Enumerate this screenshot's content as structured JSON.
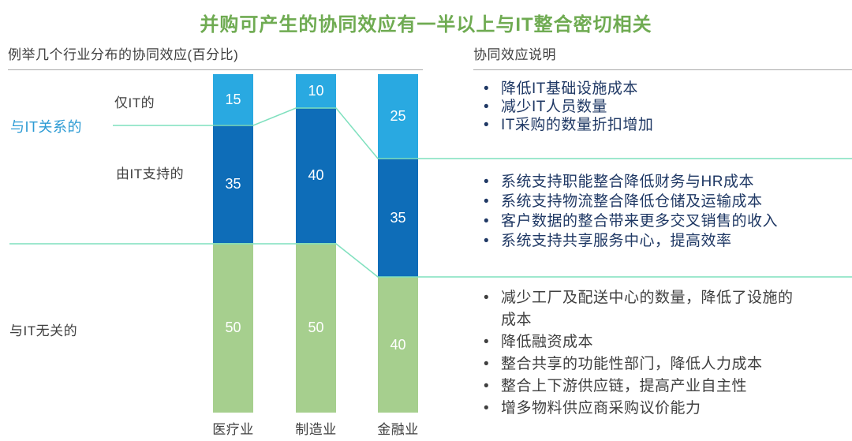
{
  "title": {
    "text": "并购可产生的协同效应有一半以上与IT整合密切相关"
  },
  "left_panel": {
    "header": "例举几个行业分布的协同效应(百分比)",
    "row_labels": {
      "only_it": "仅IT的",
      "it_related": "与IT关系的",
      "it_supported": "由IT支持的",
      "not_it": "与IT无关的"
    }
  },
  "right_panel": {
    "header": "协同效应说明",
    "groups": [
      {
        "items": [
          "降低IT基础设施成本",
          "减少IT人员数量",
          "IT采购的数量折扣增加"
        ]
      },
      {
        "items": [
          "系统支持职能整合降低财务与HR成本",
          "系统支持物流整合降低仓储及运输成本",
          "客户数据的整合带来更多交叉销售的收入",
          "系统支持共享服务中心，提高效率"
        ]
      },
      {
        "items": [
          "减少工厂及配送中心的数量，降低了设施的成本",
          "降低融资成本",
          "整合共享的功能性部门，降低人力成本",
          "整合上下游供应链，提高产业自主性",
          "增多物料供应商采购议价能力"
        ]
      }
    ]
  },
  "chart_data": {
    "type": "bar",
    "stacked": true,
    "title": "例举几个行业分布的协同效应(百分比)",
    "unit": "percent",
    "ylim": [
      0,
      100
    ],
    "grid": false,
    "legend_position": "row-labels-left",
    "categories": [
      "医疗业",
      "制造业",
      "金融业"
    ],
    "series": [
      {
        "name": "仅IT的",
        "values": [
          15,
          10,
          25
        ],
        "color": "#29A9E1"
      },
      {
        "name": "由IT支持的",
        "values": [
          35,
          40,
          35
        ],
        "color": "#0E6DB8"
      },
      {
        "name": "与IT无关的",
        "values": [
          50,
          50,
          40
        ],
        "color": "#A6CF8E"
      }
    ]
  },
  "colors": {
    "title_green": "#6FAB52",
    "bar_light_blue": "#29A9E1",
    "bar_dark_blue": "#0E6DB8",
    "bar_green": "#A6CF8E",
    "connector_line": "#7FE0BE",
    "label_blue": "#2D9BD4",
    "text_navy": "#1F3864",
    "text_gray": "#3F3F3F",
    "divider_gray": "#A9A9A9"
  }
}
